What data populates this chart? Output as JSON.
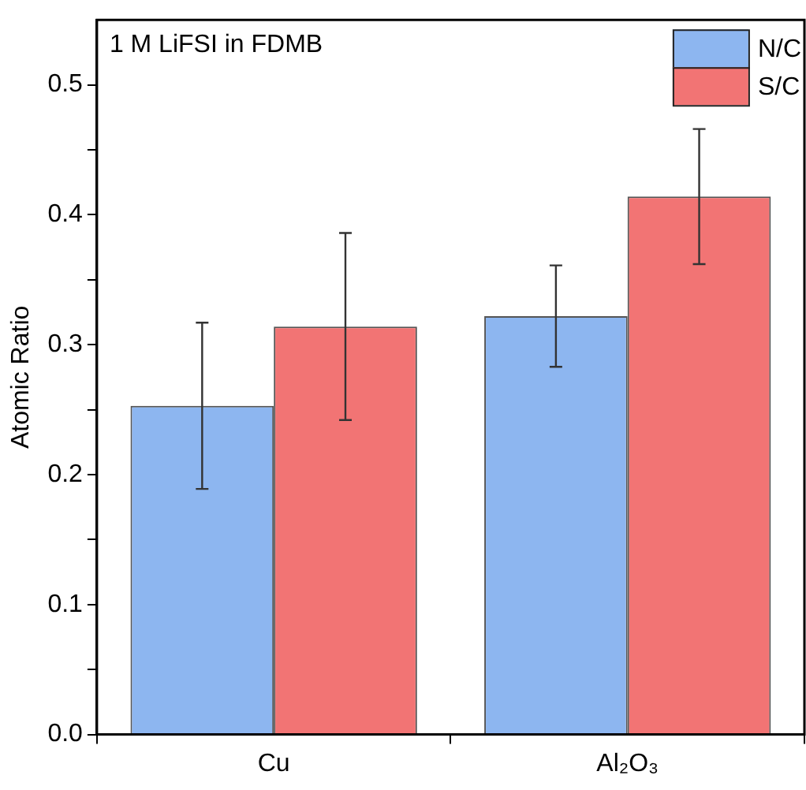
{
  "chart_data": {
    "type": "bar",
    "categories": [
      "Cu",
      "Al₂O₃"
    ],
    "series": [
      {
        "name": "N/C",
        "color": "#8db6f0",
        "values": [
          0.253,
          0.322
        ],
        "errors": [
          0.064,
          0.039
        ]
      },
      {
        "name": "S/C",
        "color": "#f27474",
        "values": [
          0.314,
          0.414
        ],
        "errors": [
          0.072,
          0.052
        ]
      }
    ],
    "ylabel": "Atomic Ratio",
    "annotations": [
      "1 M LiFSI in FDMB"
    ],
    "ylim": [
      0,
      0.55
    ],
    "yticks": [
      {
        "value": 0,
        "label": "0.0"
      },
      {
        "value": 0.05,
        "label": null
      },
      0.1,
      {
        "value": 0.15,
        "label": null
      },
      0.2,
      {
        "value": 0.25,
        "label": null
      },
      0.3,
      {
        "value": 0.35,
        "label": null
      },
      0.4,
      {
        "value": 0.45,
        "label": null
      },
      0.5
    ],
    "legend": "top right",
    "grid": false
  }
}
